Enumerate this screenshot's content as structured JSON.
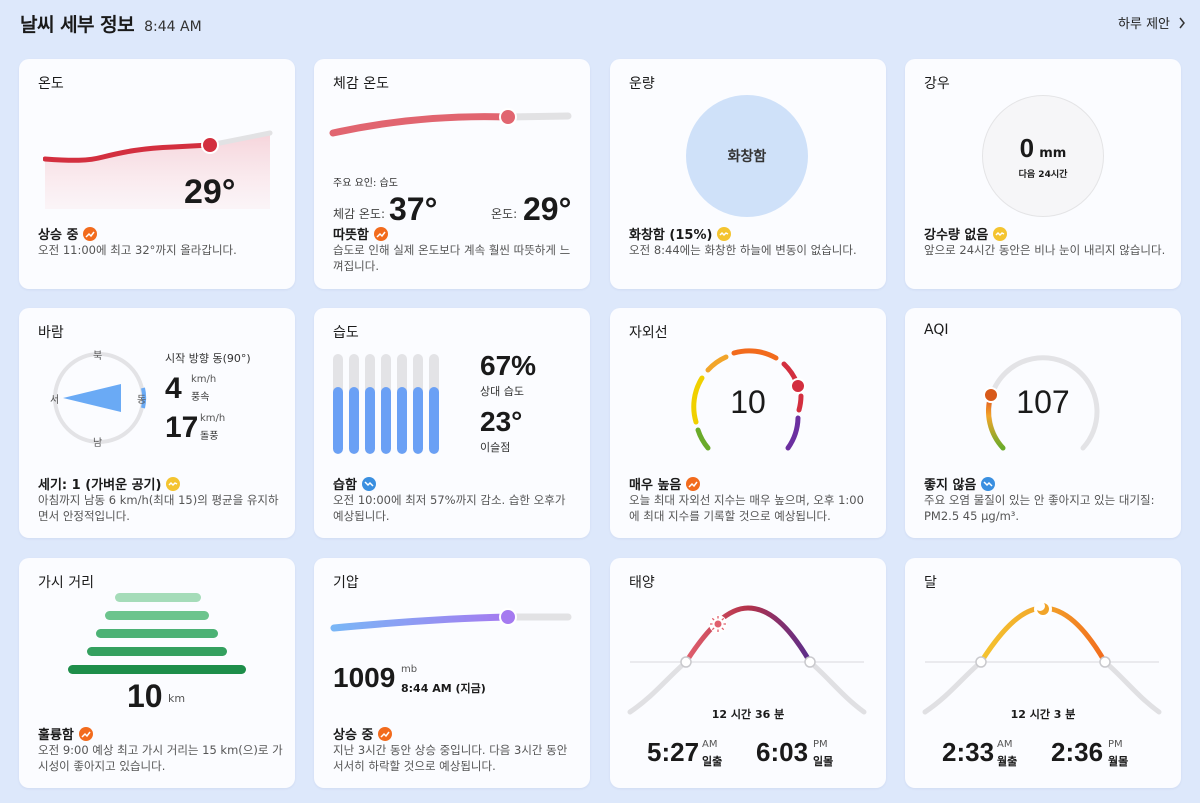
{
  "header": {
    "title": "날씨 세부 정보",
    "time": "8:44 AM",
    "daily_link": "하루 제안"
  },
  "colors": {
    "background": "#dde8fb",
    "card": "#fbfcff",
    "orange": "#f26b1d",
    "yellow": "#f4c430",
    "blue": "#3a8fe0"
  },
  "temperature": {
    "title": "온도",
    "value": "29°",
    "status": "상승 중",
    "status_icon": "trend-up-icon",
    "desc": "오전 11:00에 최고 32°까지 올라갑니다."
  },
  "feels_like": {
    "title": "체감 온도",
    "factor": "주요 요인: 습도",
    "feels_label": "체감 온도:",
    "feels_value": "37°",
    "temp_label": "온도:",
    "temp_value": "29°",
    "status": "따뜻함",
    "status_icon": "trend-up-icon",
    "desc": "습도로 인해 실제 온도보다 계속 훨씬 따뜻하게 느껴집니다.",
    "slider_level": 0.67
  },
  "cloud": {
    "title": "운량",
    "circle_label": "화창함",
    "status": "화창함 (15%)",
    "status_icon": "steady-icon",
    "desc": "오전 8:44에는 화창한 하늘에 변동이 없습니다."
  },
  "precip": {
    "title": "강우",
    "value": "0",
    "unit": "mm",
    "sub": "다음 24시간",
    "status": "강수량 없음",
    "status_icon": "steady-icon",
    "desc": "앞으로 24시간 동안은 비나 눈이 내리지 않습니다."
  },
  "wind": {
    "title": "바람",
    "north": "북",
    "south": "남",
    "west": "서",
    "east": "동",
    "direction": "시작 방향 동(90°)",
    "speed": "4",
    "speed_unit": "km/h",
    "speed_label": "풍속",
    "gust": "17",
    "gust_unit": "km/h",
    "gust_label": "돌풍",
    "status": "세기: 1 (가벼운 공기)",
    "status_icon": "steady-icon",
    "desc": "아침까지 남동 6 km/h(최대 15)의 평균을 유지하면서 안정적입니다."
  },
  "humidity": {
    "title": "습도",
    "value": "67%",
    "label": "상대 습도",
    "dew": "23°",
    "dew_label": "이슬점",
    "status": "습함",
    "status_icon": "trend-down-icon",
    "desc": "오전 10:00에 최저 57%까지 감소. 습한 오후가 예상됩니다.",
    "bar_levels": [
      0.67,
      0.67,
      0.67,
      0.67,
      0.67,
      0.67,
      0.67
    ]
  },
  "uv": {
    "title": "자외선",
    "value": "10",
    "status": "매우 높음",
    "status_icon": "trend-up-icon",
    "desc": "오늘 최대 자외선 지수는 매우 높으며, 오후 1:00에 최대 지수를 기록할 것으로 예상됩니다."
  },
  "aqi": {
    "title": "AQI",
    "value": "107",
    "status": "좋지 않음",
    "status_icon": "trend-down-icon",
    "desc": "주요 오염 물질이 있는 안 좋아지고 있는 대기질: PM2.5 45 μg/m³."
  },
  "visibility": {
    "title": "가시 거리",
    "value": "10",
    "unit": "km",
    "status": "훌륭함",
    "status_icon": "trend-up-icon",
    "desc": "오전 9:00 예상 최고 가시 거리는 15 km(으)로 가시성이 좋아지고 있습니다."
  },
  "pressure": {
    "title": "기압",
    "value": "1009",
    "unit": "mb",
    "time": "8:44 AM (지금)",
    "status": "상승 중",
    "status_icon": "trend-up-icon",
    "desc": "지난 3시간 동안 상승 중입니다. 다음 3시간 동안 서서히 하락할 것으로 예상됩니다.",
    "slider_level": 0.73
  },
  "sun": {
    "title": "태양",
    "duration": "12 시간 36 분",
    "rise_time": "5:27",
    "rise_ampm": "AM",
    "rise_label": "일출",
    "set_time": "6:03",
    "set_ampm": "PM",
    "set_label": "일몰"
  },
  "moon": {
    "title": "달",
    "duration": "12 시간 3 분",
    "rise_time": "2:33",
    "rise_ampm": "AM",
    "rise_label": "월출",
    "set_time": "2:36",
    "set_ampm": "PM",
    "set_label": "월몰"
  }
}
